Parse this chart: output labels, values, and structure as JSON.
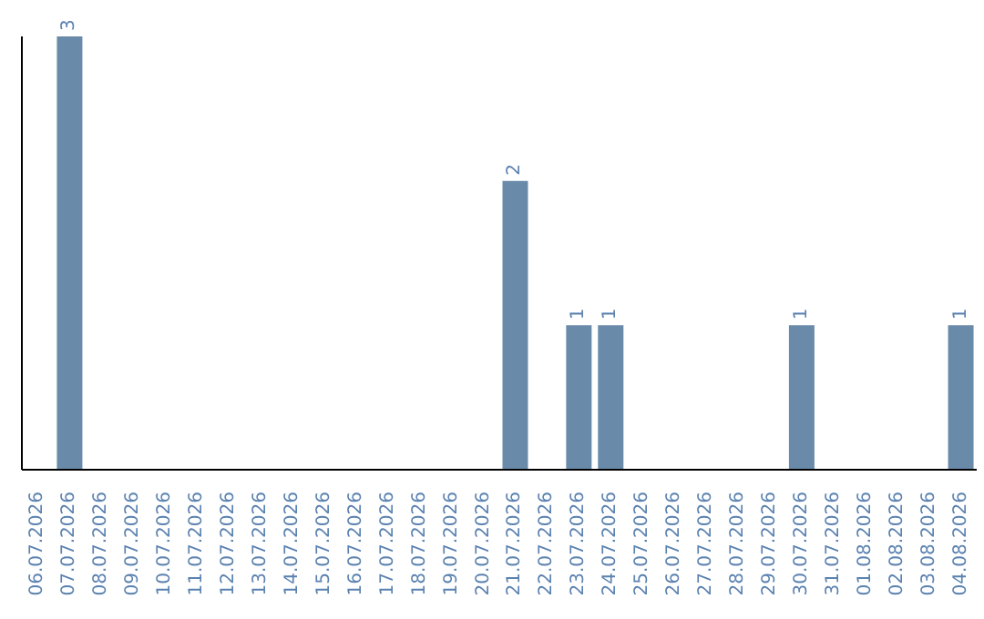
{
  "chart_data": {
    "type": "bar",
    "categories": [
      "06.07.2026",
      "07.07.2026",
      "08.07.2026",
      "09.07.2026",
      "10.07.2026",
      "11.07.2026",
      "12.07.2026",
      "13.07.2026",
      "14.07.2026",
      "15.07.2026",
      "16.07.2026",
      "17.07.2026",
      "18.07.2026",
      "19.07.2026",
      "20.07.2026",
      "21.07.2026",
      "22.07.2026",
      "23.07.2026",
      "24.07.2026",
      "25.07.2026",
      "26.07.2026",
      "27.07.2026",
      "28.07.2026",
      "29.07.2026",
      "30.07.2026",
      "31.07.2026",
      "01.08.2026",
      "02.08.2026",
      "03.08.2026",
      "04.08.2026"
    ],
    "values": [
      0,
      3,
      0,
      0,
      0,
      0,
      0,
      0,
      0,
      0,
      0,
      0,
      0,
      0,
      0,
      2,
      0,
      1,
      1,
      0,
      0,
      0,
      0,
      0,
      1,
      0,
      0,
      0,
      0,
      1
    ],
    "value_labels": [
      null,
      "3",
      null,
      null,
      null,
      null,
      null,
      null,
      null,
      null,
      null,
      null,
      null,
      null,
      null,
      "2",
      null,
      "1",
      "1",
      null,
      null,
      null,
      null,
      null,
      "1",
      null,
      null,
      null,
      null,
      "1"
    ],
    "color": "#6a8aaa",
    "grid": false,
    "tick_labels": "x"
  }
}
